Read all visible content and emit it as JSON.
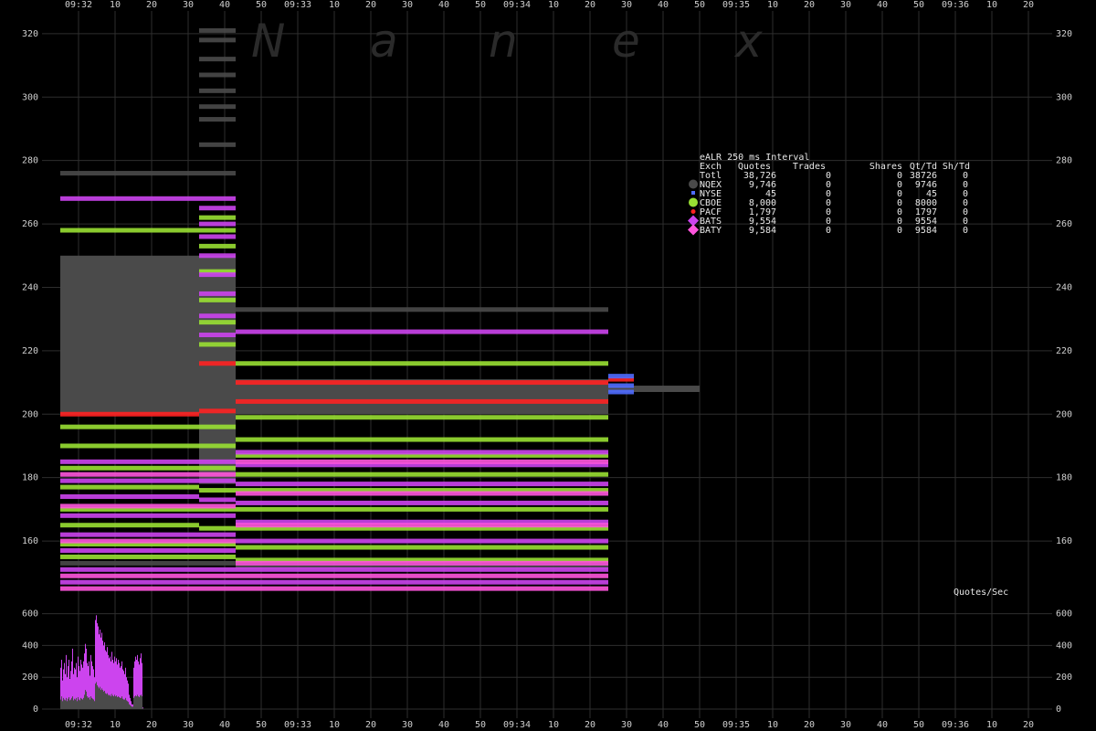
{
  "colors": {
    "background": "#000000",
    "grid": "#2e2e2e",
    "NQEX": "#4a4a4a",
    "NYSE": "#4f6cff",
    "CBOE": "#99e033",
    "PACF": "#ff2222",
    "BATS": "#cc44ee",
    "BATY": "#ff55dd",
    "tick_text": "#cfcfcf"
  },
  "watermark": [
    "N",
    "a",
    "n",
    "e",
    "x"
  ],
  "chart_data": [
    {
      "type": "scatter",
      "title": "",
      "x_tick_labels": [
        "09:32",
        "10",
        "20",
        "30",
        "40",
        "50",
        "09:33",
        "10",
        "20",
        "30",
        "40",
        "50",
        "09:34",
        "10",
        "20",
        "30",
        "40",
        "50",
        "09:35",
        "10",
        "20",
        "30",
        "40",
        "50",
        "09:36",
        "10",
        "20"
      ],
      "y_tick_labels": [
        "320",
        "300",
        "280",
        "260",
        "240",
        "220",
        "200",
        "180",
        "160"
      ],
      "ylim": [
        142,
        324
      ],
      "grid": true,
      "legend": {
        "placement": "top-right",
        "title": "eALR 250 ms Interval",
        "headers": [
          "Exch",
          "Quotes",
          "Trades",
          "Shares",
          "Qt/Td",
          "Sh/Td"
        ],
        "rows": [
          {
            "exch": "Totl",
            "quotes": "38,726",
            "trades": "0",
            "shares": "0",
            "qt_td": "38726",
            "sh_td": "0",
            "icon": "none-icon",
            "color": ""
          },
          {
            "exch": "NQEX",
            "quotes": "9,746",
            "trades": "0",
            "shares": "0",
            "qt_td": "9746",
            "sh_td": "0",
            "icon": "circle-icon",
            "color": "#4a4a4a"
          },
          {
            "exch": "NYSE",
            "quotes": "45",
            "trades": "0",
            "shares": "0",
            "qt_td": "45",
            "sh_td": "0",
            "icon": "small-square-icon",
            "color": "#4f6cff"
          },
          {
            "exch": "CBOE",
            "quotes": "8,000",
            "trades": "0",
            "shares": "0",
            "qt_td": "8000",
            "sh_td": "0",
            "icon": "circle-icon",
            "color": "#99e033"
          },
          {
            "exch": "PACF",
            "quotes": "1,797",
            "trades": "0",
            "shares": "0",
            "qt_td": "1797",
            "sh_td": "0",
            "icon": "small-circle-icon",
            "color": "#ff2222"
          },
          {
            "exch": "BATS",
            "quotes": "9,554",
            "trades": "0",
            "shares": "0",
            "qt_td": "9554",
            "sh_td": "0",
            "icon": "diamond-icon",
            "color": "#cc44ee"
          },
          {
            "exch": "BATY",
            "quotes": "9,584",
            "trades": "0",
            "shares": "0",
            "qt_td": "9584",
            "sh_td": "0",
            "icon": "diamond-icon",
            "color": "#ff55dd"
          }
        ]
      },
      "series": [
        {
          "exchange": "NQEX",
          "kind": "band",
          "segments": [
            [
              0,
              38,
              200,
              250
            ],
            [
              38,
              48,
              178,
              250
            ],
            [
              48,
              150,
              200,
              211
            ],
            [
              150,
              175,
              207,
              209
            ]
          ]
        },
        {
          "exchange": "NQEX",
          "kind": "levels",
          "segments": [
            [
              0,
              38,
              [
                276
              ]
            ],
            [
              38,
              48,
              [
                321,
                318,
                312,
                307,
                302,
                297,
                293,
                285,
                276
              ]
            ],
            [
              48,
              150,
              [
                233
              ]
            ],
            [
              0,
              38,
              [
                153
              ]
            ],
            [
              38,
              48,
              [
                153
              ]
            ],
            [
              48,
              150,
              [
                152
              ]
            ]
          ]
        },
        {
          "exchange": "PACF",
          "kind": "levels",
          "segments": [
            [
              0,
              38,
              [
                200
              ]
            ],
            [
              38,
              48,
              [
                216,
                201
              ]
            ],
            [
              48,
              150,
              [
                204,
                210
              ]
            ],
            [
              150,
              157,
              [
                211
              ]
            ]
          ]
        },
        {
          "exchange": "CBOE",
          "kind": "levels",
          "segments": [
            [
              0,
              38,
              [
                258,
                196,
                190,
                183,
                177,
                170,
                165,
                159,
                155
              ]
            ],
            [
              38,
              48,
              [
                262,
                258,
                253,
                245,
                236,
                229,
                222,
                196,
                190,
                183,
                176,
                170,
                164,
                159,
                155
              ]
            ],
            [
              48,
              150,
              [
                216,
                199,
                192,
                187,
                181,
                176,
                170,
                164,
                158,
                154
              ]
            ]
          ]
        },
        {
          "exchange": "BATS",
          "kind": "levels",
          "segments": [
            [
              0,
              38,
              [
                268,
                185,
                179,
                174,
                168,
                162,
                157,
                151,
                147
              ]
            ],
            [
              38,
              48,
              [
                268,
                265,
                260,
                256,
                250,
                244,
                238,
                231,
                225,
                185,
                179,
                173,
                168,
                162,
                157,
                151,
                147
              ]
            ],
            [
              48,
              150,
              [
                226,
                188,
                184,
                178,
                172,
                166,
                160,
                151,
                147
              ]
            ]
          ]
        },
        {
          "exchange": "BATY",
          "kind": "levels",
          "segments": [
            [
              0,
              38,
              [
                181,
                171,
                160,
                149,
                145
              ]
            ],
            [
              38,
              48,
              [
                181,
                171,
                160,
                149,
                145
              ]
            ],
            [
              48,
              150,
              [
                185,
                175,
                165,
                153,
                149,
                145
              ]
            ]
          ]
        },
        {
          "exchange": "NYSE",
          "kind": "levels",
          "segments": [
            [
              150,
              157,
              [
                212,
                209,
                207
              ]
            ]
          ]
        }
      ]
    },
    {
      "type": "bar",
      "label": "Quotes/Sec",
      "x_tick_labels": [
        "09:32",
        "10",
        "20",
        "30",
        "40",
        "50",
        "09:33",
        "10",
        "20",
        "30",
        "40",
        "50",
        "09:34",
        "10",
        "20",
        "30",
        "40",
        "50",
        "09:35",
        "10",
        "20",
        "30",
        "40",
        "50",
        "09:36",
        "10",
        "20"
      ],
      "y_tick_labels": [
        "600",
        "400",
        "200",
        "0"
      ],
      "ylim": [
        0,
        700
      ],
      "series": [
        {
          "name": "",
          "exchange": "BATS",
          "values": [
            260,
            310,
            180,
            250,
            290,
            220,
            340,
            200,
            270,
            310,
            190,
            240,
            300,
            380,
            220,
            260,
            250,
            290,
            200,
            330,
            270,
            240,
            310,
            280,
            260,
            300,
            350,
            410,
            380,
            290,
            270,
            300,
            210,
            340,
            300,
            270,
            250,
            200,
            560,
            590,
            540,
            520,
            470,
            500,
            450,
            480,
            430,
            400,
            420,
            370,
            360,
            390,
            340,
            320,
            330,
            300,
            360,
            310,
            290,
            330,
            300,
            320,
            280,
            310,
            290,
            260,
            270,
            300,
            250,
            240,
            220,
            260,
            200,
            180,
            160,
            90,
            70,
            50,
            30,
            30,
            260,
            300,
            330,
            310,
            340,
            300,
            280,
            320,
            350,
            290,
            10,
            0,
            0,
            0,
            0,
            0,
            0,
            0,
            0,
            0,
            0,
            0,
            0,
            0,
            0,
            0,
            0,
            0,
            0,
            0,
            0,
            0,
            0,
            0,
            0,
            0,
            0,
            0,
            0,
            0,
            0,
            0,
            0,
            0,
            0,
            0,
            0,
            0,
            0,
            0,
            0,
            0,
            0,
            0,
            0,
            0,
            0,
            0,
            0,
            0,
            0,
            0,
            0,
            0,
            0,
            0,
            0,
            0,
            0,
            0
          ]
        },
        {
          "name": "",
          "exchange": "NQEX",
          "values": [
            60,
            80,
            50,
            70,
            60,
            55,
            70,
            50,
            65,
            75,
            55,
            60,
            70,
            80,
            55,
            65,
            60,
            70,
            50,
            75,
            60,
            55,
            70,
            65,
            60,
            70,
            90,
            120,
            110,
            80,
            70,
            75,
            60,
            80,
            70,
            65,
            60,
            50,
            160,
            170,
            150,
            140,
            130,
            140,
            120,
            130,
            120,
            110,
            115,
            100,
            95,
            100,
            90,
            85,
            90,
            80,
            95,
            85,
            80,
            90,
            80,
            85,
            75,
            80,
            75,
            70,
            70,
            80,
            65,
            60,
            60,
            70,
            55,
            50,
            45,
            30,
            25,
            20,
            15,
            15,
            70,
            80,
            85,
            80,
            90,
            80,
            75,
            85,
            90,
            80,
            5,
            0,
            0,
            0,
            0,
            0,
            0,
            0,
            0,
            0,
            0,
            0,
            0,
            0,
            0,
            0,
            0,
            0,
            0,
            0,
            0,
            0,
            0,
            0,
            0,
            0,
            0,
            0,
            0,
            0,
            0,
            0,
            0,
            0,
            0,
            0,
            0,
            0,
            0,
            0,
            0,
            0,
            0,
            0,
            0,
            0,
            0,
            0,
            0,
            0,
            0,
            0,
            0,
            0,
            0,
            0,
            0,
            0,
            0,
            0
          ]
        }
      ]
    }
  ]
}
